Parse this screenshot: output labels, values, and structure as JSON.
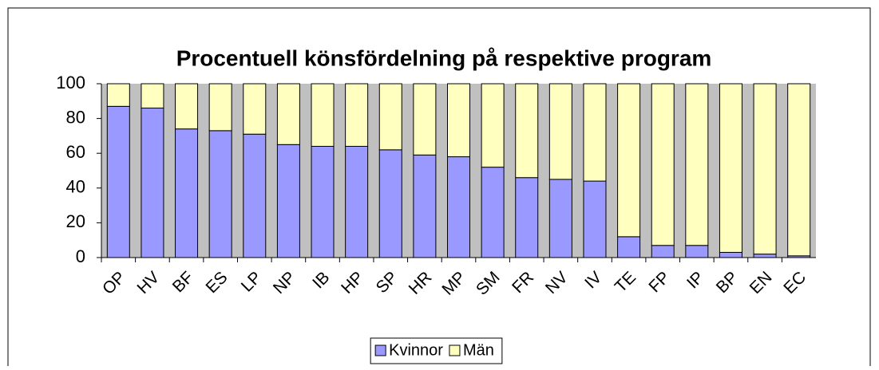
{
  "chart_data": {
    "type": "stacked_bar",
    "title": "Procentuell könsfördelning på respektive program",
    "categories": [
      "OP",
      "HV",
      "BF",
      "ES",
      "LP",
      "NP",
      "IB",
      "HP",
      "SP",
      "HR",
      "MP",
      "SM",
      "FR",
      "NV",
      "IV",
      "TE",
      "FP",
      "IP",
      "BP",
      "EN",
      "EC"
    ],
    "series": [
      {
        "name": "Kvinnor",
        "color": "#9999ff",
        "values": [
          87,
          86,
          74,
          73,
          71,
          65,
          64,
          64,
          62,
          59,
          58,
          52,
          46,
          45,
          44,
          12,
          7,
          7,
          3,
          2,
          1
        ]
      },
      {
        "name": "Män",
        "color": "#ffffc0",
        "values": [
          13,
          14,
          26,
          27,
          29,
          35,
          36,
          36,
          38,
          41,
          42,
          48,
          54,
          55,
          56,
          88,
          93,
          93,
          97,
          98,
          99
        ]
      }
    ],
    "ylim": [
      0,
      100
    ],
    "yticks": [
      0,
      20,
      40,
      60,
      80,
      100
    ],
    "grid": false,
    "legend": "bottom"
  }
}
